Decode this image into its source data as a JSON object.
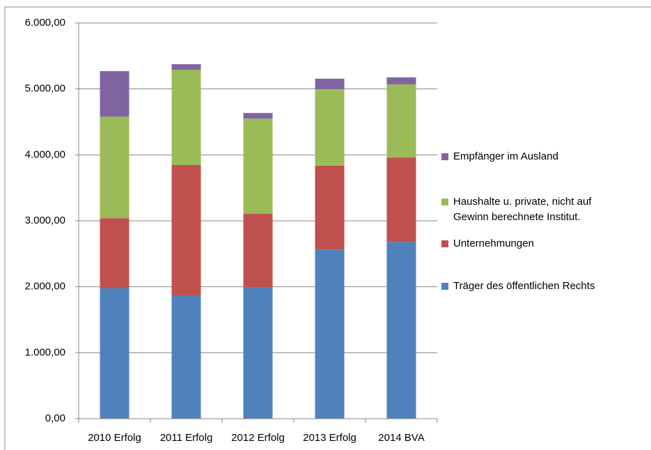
{
  "chart_data": {
    "type": "stacked_bar",
    "categories": [
      "2010 Erfolg",
      "2011 Erfolg",
      "2012 Erfolg",
      "2013 Erfolg",
      "2014 BVA"
    ],
    "series": [
      {
        "name": "Träger des öffentlichen Rechts",
        "color": "#4f81bd",
        "values": [
          1980,
          1870,
          1990,
          2565,
          2680
        ]
      },
      {
        "name": "Unternehmungen",
        "color": "#c0504d",
        "values": [
          1060,
          1975,
          1115,
          1270,
          1280
        ]
      },
      {
        "name": "Haushalte u. private, nicht auf Gewinn berechnete Institut.",
        "color": "#9bbb59",
        "values": [
          1540,
          1445,
          1445,
          1160,
          1110
        ]
      },
      {
        "name": "Empfänger im Ausland",
        "color": "#8064a2",
        "values": [
          690,
          85,
          85,
          160,
          105
        ]
      }
    ],
    "ylim": [
      0,
      6000
    ],
    "yticks": [
      {
        "value": 0,
        "label": "0,00"
      },
      {
        "value": 1000,
        "label": "1.000,00"
      },
      {
        "value": 2000,
        "label": "2.000,00"
      },
      {
        "value": 3000,
        "label": "3.000,00"
      },
      {
        "value": 4000,
        "label": "4.000,00"
      },
      {
        "value": 5000,
        "label": "5.000,00"
      },
      {
        "value": 6000,
        "label": "6.000,00"
      }
    ],
    "grid": true,
    "legend": "right"
  }
}
